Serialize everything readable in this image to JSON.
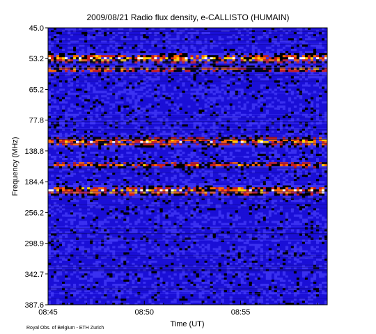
{
  "chart_data": {
    "type": "heatmap",
    "title": "2009/08/21  Radio flux density, e-CALLISTO (HUMAIN)",
    "xlabel": "Time (UT)",
    "ylabel": "Frequency (MHz)",
    "credit": "Royal Obs. of Belgium - ETH Zurich",
    "x_ticks": [
      "08:45",
      "08:50",
      "08:55"
    ],
    "x_tick_minutes": [
      0,
      5,
      10
    ],
    "x_range_minutes": [
      0,
      14.5
    ],
    "y_ticks": [
      "45.0",
      "53.2",
      "65.2",
      "77.8",
      "138.8",
      "184.4",
      "256.2",
      "298.9",
      "342.7",
      "387.6"
    ],
    "y_tick_index": [
      0,
      1,
      2,
      3,
      4,
      5,
      6,
      7,
      8,
      9
    ],
    "colormap": [
      "#000000",
      "#1a0fd6",
      "#3a30f0",
      "#c81e1e",
      "#ff6a00",
      "#ffd000",
      "#ffffff"
    ],
    "background_color": "#1a0fd6",
    "bright_bands": [
      {
        "y_index": 1.0,
        "x_start": 0,
        "x_end": 14.5,
        "intensity": "high"
      },
      {
        "y_index": 1.35,
        "x_start": 0,
        "x_end": 14.5,
        "intensity": "medium"
      },
      {
        "y_index": 3.7,
        "x_start": 0,
        "x_end": 14.5,
        "intensity": "high"
      },
      {
        "y_index": 4.45,
        "x_start": 0,
        "x_end": 14.5,
        "intensity": "medium"
      },
      {
        "y_index": 5.3,
        "x_start": 0,
        "x_end": 14.5,
        "intensity": "high"
      }
    ]
  }
}
